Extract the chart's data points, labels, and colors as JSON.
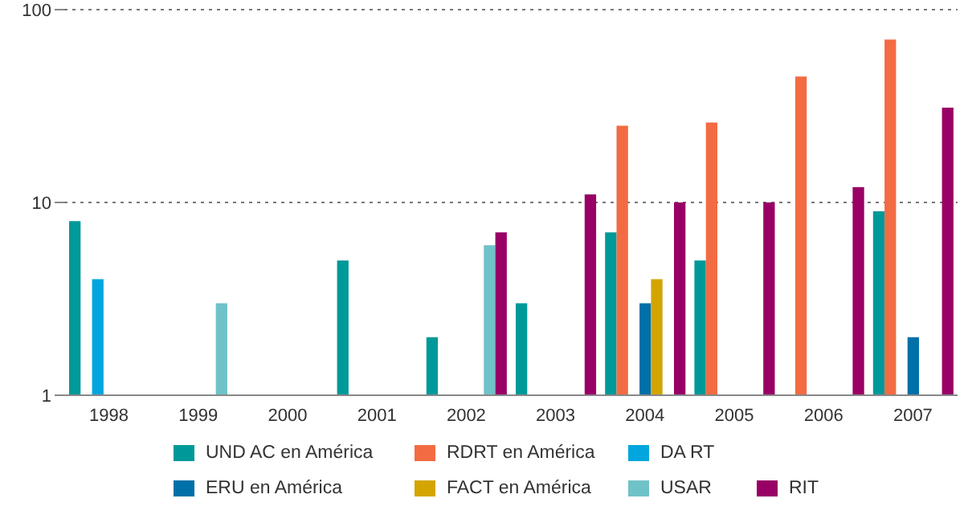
{
  "chart_data": {
    "type": "bar",
    "categories": [
      "1998",
      "1999",
      "2000",
      "2001",
      "2002",
      "2003",
      "2004",
      "2005",
      "2006",
      "2007"
    ],
    "series": [
      {
        "name": "UND AC en América",
        "color": "#009999",
        "values": [
          8,
          null,
          null,
          5,
          2,
          3,
          7,
          5,
          null,
          9
        ]
      },
      {
        "name": "RDRT en América",
        "color": "#f26b43",
        "values": [
          null,
          null,
          null,
          null,
          null,
          null,
          25,
          26,
          45,
          70
        ]
      },
      {
        "name": "DA RT",
        "color": "#00a6dd",
        "values": [
          4,
          null,
          null,
          null,
          null,
          null,
          null,
          null,
          null,
          null
        ]
      },
      {
        "name": "ERU en América",
        "color": "#0070a8",
        "values": [
          null,
          null,
          null,
          null,
          null,
          null,
          3,
          null,
          null,
          2
        ]
      },
      {
        "name": "FACT en América",
        "color": "#d4a500",
        "values": [
          null,
          null,
          null,
          null,
          null,
          null,
          4,
          null,
          null,
          null
        ]
      },
      {
        "name": "USAR",
        "color": "#6fc2c8",
        "values": [
          null,
          3,
          null,
          null,
          6,
          null,
          null,
          null,
          null,
          null
        ]
      },
      {
        "name": "RIT",
        "color": "#990066",
        "values": [
          null,
          null,
          null,
          null,
          7,
          11,
          10,
          10,
          12,
          31
        ]
      }
    ],
    "log": true,
    "ylim": [
      1,
      100
    ],
    "yticks": [
      1,
      10,
      100
    ],
    "grid": "y",
    "legend": "bottom"
  }
}
